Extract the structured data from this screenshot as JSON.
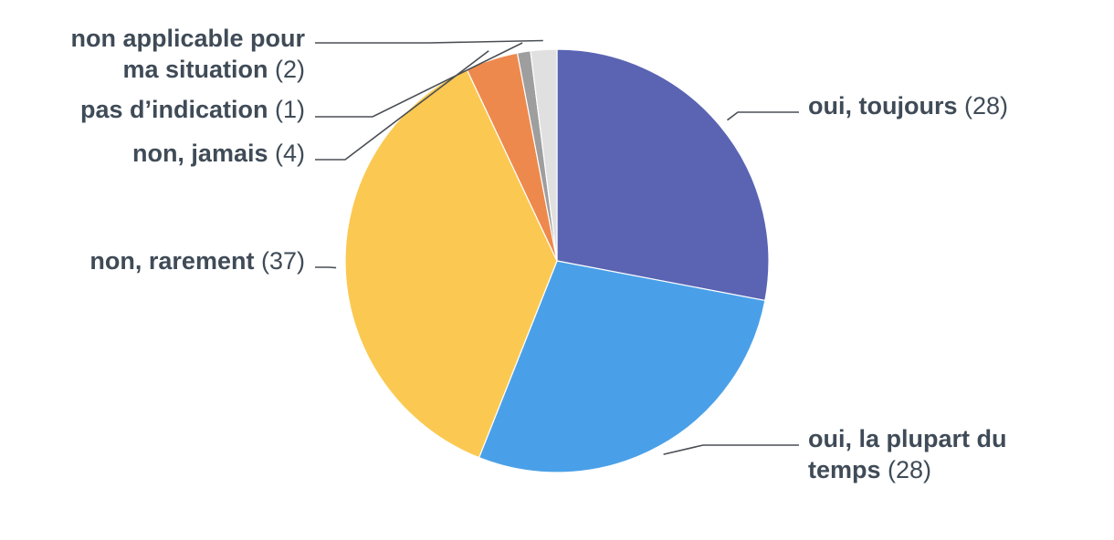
{
  "chart_data": {
    "type": "pie",
    "title": "",
    "slices": [
      {
        "lines": [
          "oui, toujours"
        ],
        "count_text": "(28)",
        "value": 28,
        "color": "#5a64b3"
      },
      {
        "lines": [
          "oui, la plupart du",
          "temps"
        ],
        "count_text": "(28)",
        "value": 28,
        "color": "#4aa0e8"
      },
      {
        "lines": [
          "non, rarement"
        ],
        "count_text": "(37)",
        "value": 37,
        "color": "#fbc952"
      },
      {
        "lines": [
          "non, jamais"
        ],
        "count_text": "(4)",
        "value": 4,
        "color": "#ee894d"
      },
      {
        "lines": [
          "pas d’indication"
        ],
        "count_text": "(1)",
        "value": 1,
        "color": "#9e9e9e"
      },
      {
        "lines": [
          "non applicable pour",
          "ma situation"
        ],
        "count_text": "(2)",
        "value": 2,
        "color": "#e0e0e0"
      }
    ]
  }
}
